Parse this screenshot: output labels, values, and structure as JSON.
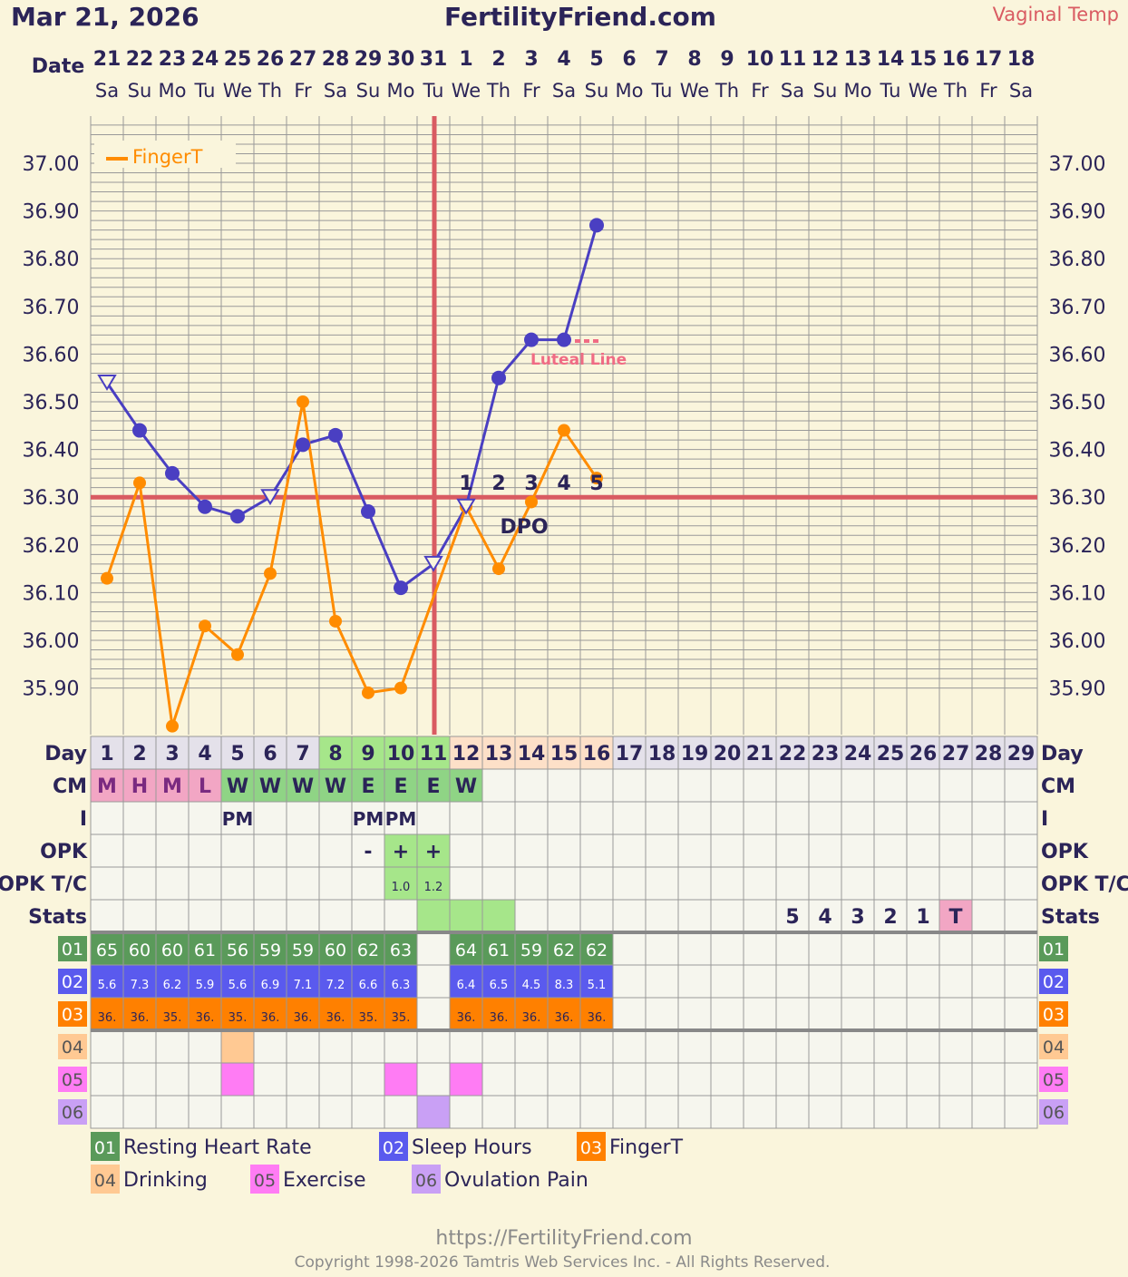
{
  "header": {
    "date": "Mar 21, 2026",
    "site": "FertilityFriend.com",
    "temp_type": "Vaginal Temp"
  },
  "date_label": "Date",
  "dates": [
    "21",
    "22",
    "23",
    "24",
    "25",
    "26",
    "27",
    "28",
    "29",
    "30",
    "31",
    "1",
    "2",
    "3",
    "4",
    "5",
    "6",
    "7",
    "8",
    "9",
    "10",
    "11",
    "12",
    "13",
    "14",
    "15",
    "16",
    "17",
    "18"
  ],
  "weekdays": [
    "Sa",
    "Su",
    "Mo",
    "Tu",
    "We",
    "Th",
    "Fr",
    "Sa",
    "Su",
    "Mo",
    "Tu",
    "We",
    "Th",
    "Fr",
    "Sa",
    "Su",
    "Mo",
    "Tu",
    "We",
    "Th",
    "Fr",
    "Sa",
    "Su",
    "Mo",
    "Tu",
    "We",
    "Th",
    "Fr",
    "Sa"
  ],
  "chart_data": {
    "type": "line",
    "ylim": [
      35.82,
      37.1
    ],
    "y_ticks": [
      "37.00",
      "36.90",
      "36.80",
      "36.70",
      "36.60",
      "36.50",
      "36.40",
      "36.30",
      "36.20",
      "36.10",
      "36.00",
      "35.90"
    ],
    "legend_label": "FingerT",
    "coverline": 36.3,
    "ovulation_day": 11,
    "luteal_label": "Luteal Line",
    "dpo_label": "DPO",
    "dpo_numbers": [
      "1",
      "2",
      "3",
      "4",
      "5"
    ],
    "series": [
      {
        "name": "Vaginal Temp",
        "color": "#4a3fc2",
        "days": [
          1,
          2,
          3,
          4,
          5,
          6,
          7,
          8,
          9,
          10,
          11,
          12,
          13,
          14,
          15,
          16
        ],
        "values": [
          36.54,
          36.44,
          36.35,
          36.28,
          36.26,
          36.3,
          36.41,
          36.43,
          36.27,
          36.11,
          36.16,
          36.28,
          36.55,
          36.63,
          36.63,
          36.87
        ],
        "marker": [
          "open",
          "dot",
          "dot",
          "dot",
          "dot",
          "open",
          "dot",
          "dot",
          "dot",
          "dot",
          "open",
          "open",
          "dot",
          "dot",
          "dot",
          "dot"
        ]
      },
      {
        "name": "FingerT",
        "color": "#ff8c00",
        "days": [
          1,
          2,
          3,
          4,
          5,
          6,
          7,
          8,
          9,
          10,
          12,
          13,
          14,
          15,
          16
        ],
        "values": [
          36.13,
          36.33,
          35.82,
          36.03,
          35.97,
          36.14,
          36.5,
          36.04,
          35.89,
          35.9,
          36.28,
          36.15,
          36.29,
          36.44,
          36.34
        ]
      }
    ]
  },
  "rows": {
    "day_label": "Day",
    "cm_label": "CM",
    "i_label": "I",
    "opk_label": "OPK",
    "opktc_label": "OPK T/C",
    "stats_label": "Stats",
    "cm": [
      "M",
      "H",
      "M",
      "L",
      "W",
      "W",
      "W",
      "W",
      "E",
      "E",
      "E",
      "W"
    ],
    "i_values": {
      "5": "PM",
      "9": "PM",
      "10": "PM"
    },
    "opk": {
      "9": "-",
      "10": "+",
      "11": "+"
    },
    "opktc": {
      "10": "1.0",
      "11": "1.2"
    },
    "stats": {
      "22": "5",
      "23": "4",
      "24": "3",
      "25": "2",
      "26": "1",
      "27": "T"
    },
    "d01": [
      "65",
      "60",
      "60",
      "61",
      "56",
      "59",
      "59",
      "60",
      "62",
      "63",
      "",
      "64",
      "61",
      "59",
      "62",
      "62"
    ],
    "d02": [
      "5.6",
      "7.3",
      "6.2",
      "5.9",
      "5.6",
      "6.9",
      "7.1",
      "7.2",
      "6.6",
      "6.3",
      "",
      "6.4",
      "6.5",
      "4.5",
      "8.3",
      "5.1"
    ],
    "d03": [
      "36.",
      "36.",
      "35.",
      "36.",
      "35.",
      "36.",
      "36.",
      "36.",
      "35.",
      "35.",
      "",
      "36.",
      "36.",
      "36.",
      "36.",
      "36."
    ],
    "d04_days": [
      5
    ],
    "d05_days": [
      5,
      10,
      12
    ],
    "d06_days": [
      11
    ]
  },
  "legend": [
    {
      "code": "01",
      "label": "Resting Heart Rate",
      "color": "#5a9a5a"
    },
    {
      "code": "02",
      "label": "Sleep Hours",
      "color": "#5a5aee"
    },
    {
      "code": "03",
      "label": "FingerT",
      "color": "#ff8000"
    },
    {
      "code": "04",
      "label": "Drinking",
      "color": "#ffc993"
    },
    {
      "code": "05",
      "label": "Exercise",
      "color": "#ff7cf4"
    },
    {
      "code": "06",
      "label": "Ovulation Pain",
      "color": "#c9a0f5"
    }
  ],
  "footer": {
    "url": "https://FertilityFriend.com",
    "copyright": "Copyright 1998-2026 Tamtris Web Services Inc. - All Rights Reserved."
  }
}
